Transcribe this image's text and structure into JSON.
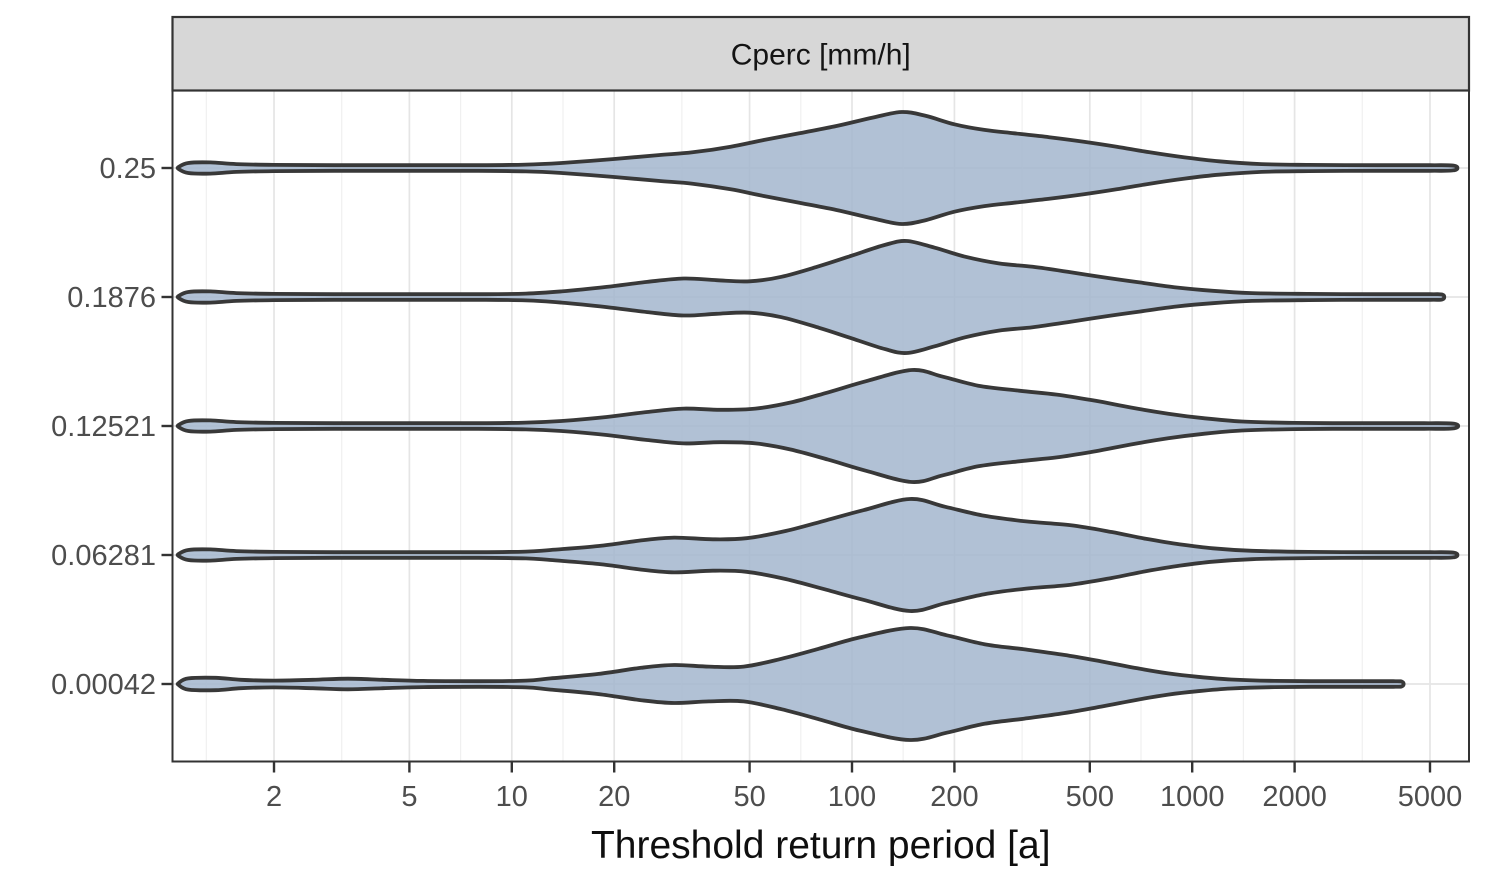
{
  "chart_data": {
    "type": "violin",
    "orientation": "horizontal",
    "facet_title": "Cperc [mm/h]",
    "xlabel": "Threshold return period [a]",
    "ylabel": "",
    "x_scale": "log10",
    "x_domain": [
      1.0,
      6550
    ],
    "x_ticks": [
      2,
      5,
      10,
      20,
      50,
      100,
      200,
      500,
      1000,
      2000,
      5000
    ],
    "x_minor_gridlines": [
      1.265,
      3.162,
      7.071,
      14.14,
      31.62,
      70.71,
      141.4,
      316.2,
      707.1,
      1414,
      3162
    ],
    "grid": "on",
    "categories": [
      "0.25",
      "0.1876",
      "0.12521",
      "0.06281",
      "0.00042"
    ],
    "series": [
      {
        "name": "0.25",
        "profile": [
          [
            1.05,
            0.02
          ],
          [
            1.12,
            0.09
          ],
          [
            1.3,
            0.1
          ],
          [
            1.55,
            0.07
          ],
          [
            2,
            0.055
          ],
          [
            3,
            0.05
          ],
          [
            5,
            0.05
          ],
          [
            8,
            0.05
          ],
          [
            11,
            0.06
          ],
          [
            14,
            0.09
          ],
          [
            20,
            0.16
          ],
          [
            27,
            0.23
          ],
          [
            34,
            0.28
          ],
          [
            44,
            0.38
          ],
          [
            55,
            0.5
          ],
          [
            70,
            0.62
          ],
          [
            90,
            0.75
          ],
          [
            115,
            0.9
          ],
          [
            140,
            1.0
          ],
          [
            165,
            0.93
          ],
          [
            200,
            0.78
          ],
          [
            245,
            0.68
          ],
          [
            300,
            0.62
          ],
          [
            380,
            0.55
          ],
          [
            480,
            0.47
          ],
          [
            600,
            0.38
          ],
          [
            750,
            0.28
          ],
          [
            950,
            0.19
          ],
          [
            1200,
            0.12
          ],
          [
            1600,
            0.07
          ],
          [
            2200,
            0.055
          ],
          [
            3500,
            0.05
          ],
          [
            5000,
            0.05
          ],
          [
            5900,
            0.04
          ]
        ]
      },
      {
        "name": "0.1876",
        "profile": [
          [
            1.05,
            0.02
          ],
          [
            1.12,
            0.09
          ],
          [
            1.3,
            0.1
          ],
          [
            1.55,
            0.07
          ],
          [
            2,
            0.055
          ],
          [
            3,
            0.05
          ],
          [
            5,
            0.05
          ],
          [
            8,
            0.05
          ],
          [
            11,
            0.06
          ],
          [
            14,
            0.1
          ],
          [
            19,
            0.18
          ],
          [
            25,
            0.27
          ],
          [
            32,
            0.33
          ],
          [
            40,
            0.3
          ],
          [
            50,
            0.28
          ],
          [
            62,
            0.36
          ],
          [
            80,
            0.55
          ],
          [
            100,
            0.74
          ],
          [
            125,
            0.93
          ],
          [
            145,
            1.0
          ],
          [
            175,
            0.88
          ],
          [
            215,
            0.72
          ],
          [
            270,
            0.6
          ],
          [
            340,
            0.54
          ],
          [
            430,
            0.45
          ],
          [
            550,
            0.35
          ],
          [
            700,
            0.26
          ],
          [
            900,
            0.17
          ],
          [
            1150,
            0.11
          ],
          [
            1500,
            0.07
          ],
          [
            2200,
            0.055
          ],
          [
            3500,
            0.05
          ],
          [
            5000,
            0.05
          ],
          [
            5450,
            0.04
          ]
        ]
      },
      {
        "name": "0.12521",
        "profile": [
          [
            1.05,
            0.02
          ],
          [
            1.12,
            0.09
          ],
          [
            1.3,
            0.1
          ],
          [
            1.55,
            0.07
          ],
          [
            2,
            0.055
          ],
          [
            3,
            0.05
          ],
          [
            5,
            0.05
          ],
          [
            8,
            0.05
          ],
          [
            11,
            0.06
          ],
          [
            14,
            0.09
          ],
          [
            19,
            0.16
          ],
          [
            25,
            0.25
          ],
          [
            32,
            0.31
          ],
          [
            41,
            0.29
          ],
          [
            52,
            0.31
          ],
          [
            66,
            0.42
          ],
          [
            85,
            0.6
          ],
          [
            110,
            0.8
          ],
          [
            150,
            1.0
          ],
          [
            185,
            0.88
          ],
          [
            235,
            0.72
          ],
          [
            310,
            0.63
          ],
          [
            400,
            0.56
          ],
          [
            520,
            0.45
          ],
          [
            660,
            0.33
          ],
          [
            850,
            0.22
          ],
          [
            1080,
            0.14
          ],
          [
            1400,
            0.08
          ],
          [
            2000,
            0.055
          ],
          [
            3200,
            0.05
          ],
          [
            4800,
            0.05
          ],
          [
            5900,
            0.04
          ]
        ]
      },
      {
        "name": "0.06281",
        "profile": [
          [
            1.05,
            0.02
          ],
          [
            1.12,
            0.09
          ],
          [
            1.3,
            0.1
          ],
          [
            1.55,
            0.07
          ],
          [
            2,
            0.055
          ],
          [
            3,
            0.05
          ],
          [
            5,
            0.05
          ],
          [
            8,
            0.05
          ],
          [
            11,
            0.06
          ],
          [
            13,
            0.09
          ],
          [
            18,
            0.16
          ],
          [
            24,
            0.26
          ],
          [
            30,
            0.31
          ],
          [
            39,
            0.28
          ],
          [
            49,
            0.3
          ],
          [
            64,
            0.43
          ],
          [
            84,
            0.62
          ],
          [
            108,
            0.8
          ],
          [
            148,
            1.0
          ],
          [
            188,
            0.86
          ],
          [
            245,
            0.7
          ],
          [
            325,
            0.6
          ],
          [
            440,
            0.53
          ],
          [
            580,
            0.41
          ],
          [
            730,
            0.29
          ],
          [
            920,
            0.19
          ],
          [
            1150,
            0.12
          ],
          [
            1500,
            0.075
          ],
          [
            2200,
            0.055
          ],
          [
            3500,
            0.05
          ],
          [
            5000,
            0.05
          ],
          [
            5900,
            0.04
          ]
        ]
      },
      {
        "name": "0.00042",
        "profile": [
          [
            1.05,
            0.02
          ],
          [
            1.12,
            0.1
          ],
          [
            1.35,
            0.11
          ],
          [
            1.6,
            0.075
          ],
          [
            2,
            0.06
          ],
          [
            2.6,
            0.075
          ],
          [
            3.3,
            0.095
          ],
          [
            4.2,
            0.075
          ],
          [
            5.5,
            0.055
          ],
          [
            8,
            0.05
          ],
          [
            11,
            0.06
          ],
          [
            13,
            0.1
          ],
          [
            18,
            0.18
          ],
          [
            24,
            0.29
          ],
          [
            30,
            0.34
          ],
          [
            38,
            0.31
          ],
          [
            48,
            0.31
          ],
          [
            62,
            0.45
          ],
          [
            80,
            0.63
          ],
          [
            105,
            0.83
          ],
          [
            148,
            1.0
          ],
          [
            190,
            0.87
          ],
          [
            245,
            0.71
          ],
          [
            320,
            0.62
          ],
          [
            420,
            0.52
          ],
          [
            545,
            0.4
          ],
          [
            690,
            0.28
          ],
          [
            850,
            0.19
          ],
          [
            1030,
            0.13
          ],
          [
            1300,
            0.08
          ],
          [
            1750,
            0.055
          ],
          [
            2800,
            0.05
          ],
          [
            3900,
            0.05
          ],
          [
            4150,
            0.035
          ]
        ]
      }
    ]
  },
  "style": {
    "violin_fill": "#a3b6ce",
    "violin_fill_opacity": 0.85,
    "violin_stroke": "#383838",
    "violin_stroke_width": 3.8,
    "strip_bg": "#d7d7d7",
    "strip_text_color": "#141414",
    "grid_major": "#e5e5e5",
    "grid_minor": "#f0f0f0",
    "panel_border": "#333333",
    "tick_color": "#333333",
    "tick_label_color": "#4d4d4d",
    "axis_title_color": "#0f0f0f",
    "background": "#ffffff"
  }
}
